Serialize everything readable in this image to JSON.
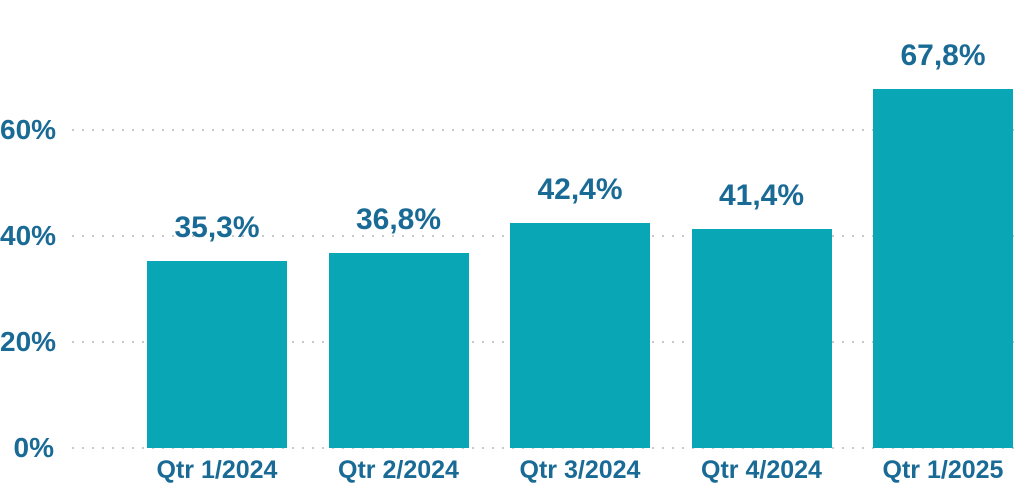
{
  "chart_data": {
    "type": "bar",
    "title": "",
    "xlabel": "",
    "ylabel": "",
    "categories": [
      "Qtr 1/2024",
      "Qtr 2/2024",
      "Qtr 3/2024",
      "Qtr 4/2024",
      "Qtr 1/2025"
    ],
    "values": [
      35.3,
      36.8,
      42.4,
      41.4,
      67.8
    ],
    "labels": [
      "35,3%",
      "36,8%",
      "42,4%",
      "41,4%",
      "67,8%"
    ],
    "ylim": [
      0,
      80
    ],
    "yticks": [
      {
        "value": 0,
        "label": "0%"
      },
      {
        "value": 20,
        "label": "20%"
      },
      {
        "value": 40,
        "label": "40%"
      },
      {
        "value": 60,
        "label": "60%"
      }
    ],
    "grid": "horizontal-dotted",
    "legend_position": "none"
  },
  "colors": {
    "bar": "#09a6b5",
    "text": "#1a6a96",
    "gridline": "#c9c9c9",
    "background": "#ffffff"
  }
}
